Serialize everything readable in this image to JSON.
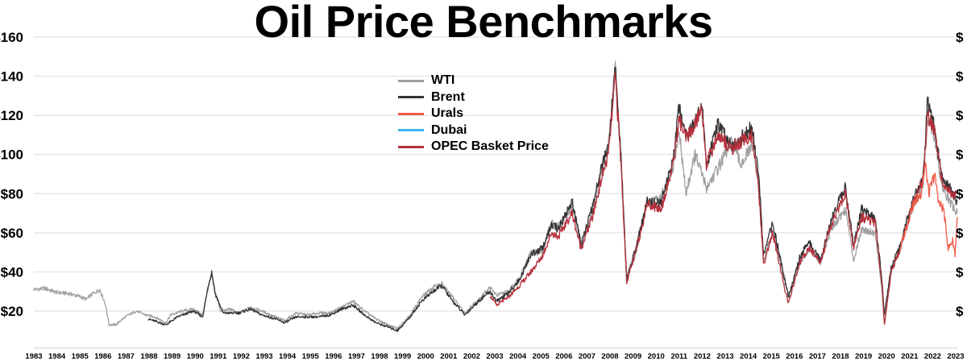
{
  "chart_data": {
    "type": "line",
    "title": "Oil Price Benchmarks",
    "xlabel": "",
    "ylabel": "",
    "xlim": [
      1983,
      2023.5
    ],
    "ylim": [
      10,
      160
    ],
    "y_ticks": [
      20,
      40,
      60,
      80,
      100,
      120,
      140,
      160
    ],
    "y_tick_labels": [
      "$20",
      "$40",
      "$60",
      "$80",
      "$100",
      "$120",
      "$140",
      "$160"
    ],
    "right_tick_labels": [
      "$",
      "$",
      "$",
      "$",
      "$",
      "$",
      "$",
      "$"
    ],
    "x_tick_labels": [
      "1983",
      "1984",
      "1985",
      "1986",
      "1987",
      "1988",
      "1989",
      "1990",
      "1991",
      "1992",
      "1993",
      "1994",
      "1995",
      "1996",
      "1997",
      "1998",
      "1999",
      "2000",
      "2001",
      "2002",
      "2003",
      "2004",
      "2005",
      "2006",
      "2007",
      "2008",
      "2009",
      "2010",
      "2011",
      "2012",
      "2013",
      "2014",
      "2015",
      "2016",
      "2017",
      "2018",
      "2019",
      "2020",
      "2021",
      "2022",
      "2023"
    ],
    "grid": true,
    "legend_position": "top-center",
    "series": [
      {
        "name": "WTI",
        "color": "#a0a0a0",
        "points": [
          [
            1983,
            31
          ],
          [
            1983.5,
            31.5
          ],
          [
            1984,
            29.5
          ],
          [
            1984.5,
            29
          ],
          [
            1985,
            27.5
          ],
          [
            1985.3,
            26
          ],
          [
            1985.6,
            29
          ],
          [
            1985.9,
            31
          ],
          [
            1986.15,
            23
          ],
          [
            1986.3,
            13
          ],
          [
            1986.6,
            13
          ],
          [
            1987,
            17
          ],
          [
            1987.5,
            20
          ],
          [
            1987.9,
            18
          ],
          [
            1988.3,
            17
          ],
          [
            1988.8,
            14
          ],
          [
            1989,
            18
          ],
          [
            1989.5,
            20
          ],
          [
            1990,
            21
          ],
          [
            1990.4,
            18
          ],
          [
            1990.65,
            32
          ],
          [
            1990.8,
            39
          ],
          [
            1990.95,
            30
          ],
          [
            1991.2,
            20
          ],
          [
            1991.6,
            21
          ],
          [
            1992,
            19
          ],
          [
            1992.5,
            22
          ],
          [
            1993,
            20
          ],
          [
            1993.6,
            17
          ],
          [
            1994,
            15
          ],
          [
            1994.5,
            19
          ],
          [
            1995,
            18
          ],
          [
            1995.5,
            19
          ],
          [
            1996,
            19
          ],
          [
            1996.5,
            22
          ],
          [
            1997,
            25
          ],
          [
            1997.5,
            20
          ],
          [
            1998,
            16
          ],
          [
            1998.5,
            13
          ],
          [
            1998.95,
            11
          ],
          [
            1999.5,
            18
          ],
          [
            2000,
            27
          ],
          [
            2000.5,
            32
          ],
          [
            2000.9,
            34
          ],
          [
            2001.3,
            28
          ],
          [
            2001.9,
            19
          ],
          [
            2002.5,
            26
          ],
          [
            2003,
            32
          ],
          [
            2003.3,
            28
          ],
          [
            2003.8,
            30
          ],
          [
            2004.3,
            37
          ],
          [
            2004.8,
            50
          ],
          [
            2005.3,
            50
          ],
          [
            2005.7,
            65
          ],
          [
            2006,
            63
          ],
          [
            2006.6,
            74
          ],
          [
            2007,
            55
          ],
          [
            2007.5,
            70
          ],
          [
            2007.9,
            92
          ],
          [
            2008.2,
            105
          ],
          [
            2008.5,
            145
          ],
          [
            2008.75,
            100
          ],
          [
            2009,
            38
          ],
          [
            2009.4,
            50
          ],
          [
            2009.9,
            75
          ],
          [
            2010.5,
            78
          ],
          [
            2011,
            91
          ],
          [
            2011.3,
            112
          ],
          [
            2011.6,
            80
          ],
          [
            2012,
            100
          ],
          [
            2012.5,
            83
          ],
          [
            2013,
            93
          ],
          [
            2013.6,
            106
          ],
          [
            2014,
            95
          ],
          [
            2014.5,
            104
          ],
          [
            2014.8,
            85
          ],
          [
            2015,
            45
          ],
          [
            2015.4,
            60
          ],
          [
            2015.9,
            38
          ],
          [
            2016.1,
            28
          ],
          [
            2016.6,
            45
          ],
          [
            2017,
            52
          ],
          [
            2017.5,
            45
          ],
          [
            2018,
            63
          ],
          [
            2018.6,
            72
          ],
          [
            2018.95,
            46
          ],
          [
            2019.3,
            62
          ],
          [
            2019.9,
            60
          ],
          [
            2020.2,
            30
          ],
          [
            2020.3,
            13
          ],
          [
            2020.6,
            40
          ],
          [
            2021,
            52
          ],
          [
            2021.5,
            72
          ],
          [
            2022,
            85
          ],
          [
            2022.2,
            120
          ],
          [
            2022.5,
            110
          ],
          [
            2022.8,
            85
          ],
          [
            2023.2,
            75
          ],
          [
            2023.5,
            70
          ]
        ]
      },
      {
        "name": "Brent",
        "color": "#333333",
        "points": [
          [
            1988,
            16
          ],
          [
            1988.8,
            13
          ],
          [
            1989.3,
            17
          ],
          [
            1990,
            20
          ],
          [
            1990.4,
            17
          ],
          [
            1990.65,
            33
          ],
          [
            1990.8,
            40
          ],
          [
            1990.95,
            29
          ],
          [
            1991.3,
            19
          ],
          [
            1992,
            19
          ],
          [
            1992.5,
            21
          ],
          [
            1993,
            18
          ],
          [
            1993.6,
            16
          ],
          [
            1994,
            14
          ],
          [
            1994.5,
            17
          ],
          [
            1995,
            17
          ],
          [
            1995.5,
            17
          ],
          [
            1996,
            18
          ],
          [
            1996.5,
            21
          ],
          [
            1997,
            23
          ],
          [
            1997.5,
            18
          ],
          [
            1998,
            14
          ],
          [
            1998.5,
            12
          ],
          [
            1998.95,
            10
          ],
          [
            1999.5,
            17
          ],
          [
            2000,
            25
          ],
          [
            2000.5,
            30
          ],
          [
            2000.9,
            33
          ],
          [
            2001.3,
            26
          ],
          [
            2001.9,
            18
          ],
          [
            2002.5,
            25
          ],
          [
            2003,
            30
          ],
          [
            2003.3,
            25
          ],
          [
            2003.8,
            29
          ],
          [
            2004.3,
            36
          ],
          [
            2004.8,
            49
          ],
          [
            2005.3,
            52
          ],
          [
            2005.7,
            64
          ],
          [
            2006,
            62
          ],
          [
            2006.6,
            76
          ],
          [
            2007,
            54
          ],
          [
            2007.5,
            73
          ],
          [
            2007.9,
            93
          ],
          [
            2008.2,
            104
          ],
          [
            2008.5,
            144
          ],
          [
            2008.75,
            98
          ],
          [
            2009,
            36
          ],
          [
            2009.4,
            52
          ],
          [
            2009.9,
            76
          ],
          [
            2010.5,
            75
          ],
          [
            2011,
            95
          ],
          [
            2011.3,
            125
          ],
          [
            2011.6,
            110
          ],
          [
            2012,
            118
          ],
          [
            2012.3,
            125
          ],
          [
            2012.5,
            95
          ],
          [
            2013,
            115
          ],
          [
            2013.6,
            105
          ],
          [
            2014,
            108
          ],
          [
            2014.5,
            114
          ],
          [
            2014.8,
            88
          ],
          [
            2015,
            48
          ],
          [
            2015.4,
            65
          ],
          [
            2015.9,
            38
          ],
          [
            2016.1,
            27
          ],
          [
            2016.6,
            48
          ],
          [
            2017,
            55
          ],
          [
            2017.5,
            46
          ],
          [
            2018,
            68
          ],
          [
            2018.6,
            84
          ],
          [
            2018.95,
            53
          ],
          [
            2019.3,
            72
          ],
          [
            2019.9,
            67
          ],
          [
            2020.2,
            35
          ],
          [
            2020.3,
            18
          ],
          [
            2020.6,
            42
          ],
          [
            2021,
            54
          ],
          [
            2021.5,
            75
          ],
          [
            2022,
            88
          ],
          [
            2022.2,
            128
          ],
          [
            2022.5,
            113
          ],
          [
            2022.8,
            90
          ],
          [
            2023.2,
            82
          ],
          [
            2023.5,
            76
          ]
        ]
      },
      {
        "name": "Urals",
        "color": "#f05a46",
        "points": [
          [
            2021,
            52
          ],
          [
            2021.5,
            73
          ],
          [
            2021.9,
            80
          ],
          [
            2022.1,
            95
          ],
          [
            2022.25,
            80
          ],
          [
            2022.5,
            90
          ],
          [
            2022.7,
            75
          ],
          [
            2022.9,
            72
          ],
          [
            2023.1,
            52
          ],
          [
            2023.3,
            56
          ],
          [
            2023.4,
            49
          ],
          [
            2023.5,
            68
          ]
        ]
      },
      {
        "name": "Dubai",
        "color": "#3cb4ee",
        "points": []
      },
      {
        "name": "OPEC Basket Price",
        "color": "#b5303c",
        "points": [
          [
            2003,
            28
          ],
          [
            2003.3,
            23
          ],
          [
            2003.8,
            27
          ],
          [
            2004.3,
            33
          ],
          [
            2004.8,
            40
          ],
          [
            2005.3,
            48
          ],
          [
            2005.7,
            60
          ],
          [
            2006,
            58
          ],
          [
            2006.6,
            70
          ],
          [
            2007,
            52
          ],
          [
            2007.5,
            68
          ],
          [
            2007.9,
            88
          ],
          [
            2008.2,
            100
          ],
          [
            2008.5,
            140
          ],
          [
            2008.75,
            95
          ],
          [
            2009,
            35
          ],
          [
            2009.4,
            50
          ],
          [
            2009.9,
            75
          ],
          [
            2010.5,
            72
          ],
          [
            2011,
            93
          ],
          [
            2011.3,
            118
          ],
          [
            2011.6,
            108
          ],
          [
            2012,
            115
          ],
          [
            2012.3,
            124
          ],
          [
            2012.5,
            95
          ],
          [
            2013,
            110
          ],
          [
            2013.6,
            103
          ],
          [
            2014,
            106
          ],
          [
            2014.5,
            110
          ],
          [
            2014.8,
            80
          ],
          [
            2015,
            44
          ],
          [
            2015.4,
            60
          ],
          [
            2015.9,
            33
          ],
          [
            2016.1,
            24
          ],
          [
            2016.6,
            45
          ],
          [
            2017,
            52
          ],
          [
            2017.5,
            45
          ],
          [
            2018,
            65
          ],
          [
            2018.6,
            80
          ],
          [
            2018.95,
            52
          ],
          [
            2019.3,
            68
          ],
          [
            2019.9,
            65
          ],
          [
            2020.2,
            33
          ],
          [
            2020.3,
            13
          ],
          [
            2020.6,
            40
          ],
          [
            2021,
            52
          ],
          [
            2021.5,
            72
          ],
          [
            2022,
            87
          ],
          [
            2022.2,
            120
          ],
          [
            2022.5,
            112
          ],
          [
            2022.8,
            88
          ],
          [
            2023.2,
            80
          ],
          [
            2023.5,
            80
          ]
        ]
      }
    ]
  }
}
